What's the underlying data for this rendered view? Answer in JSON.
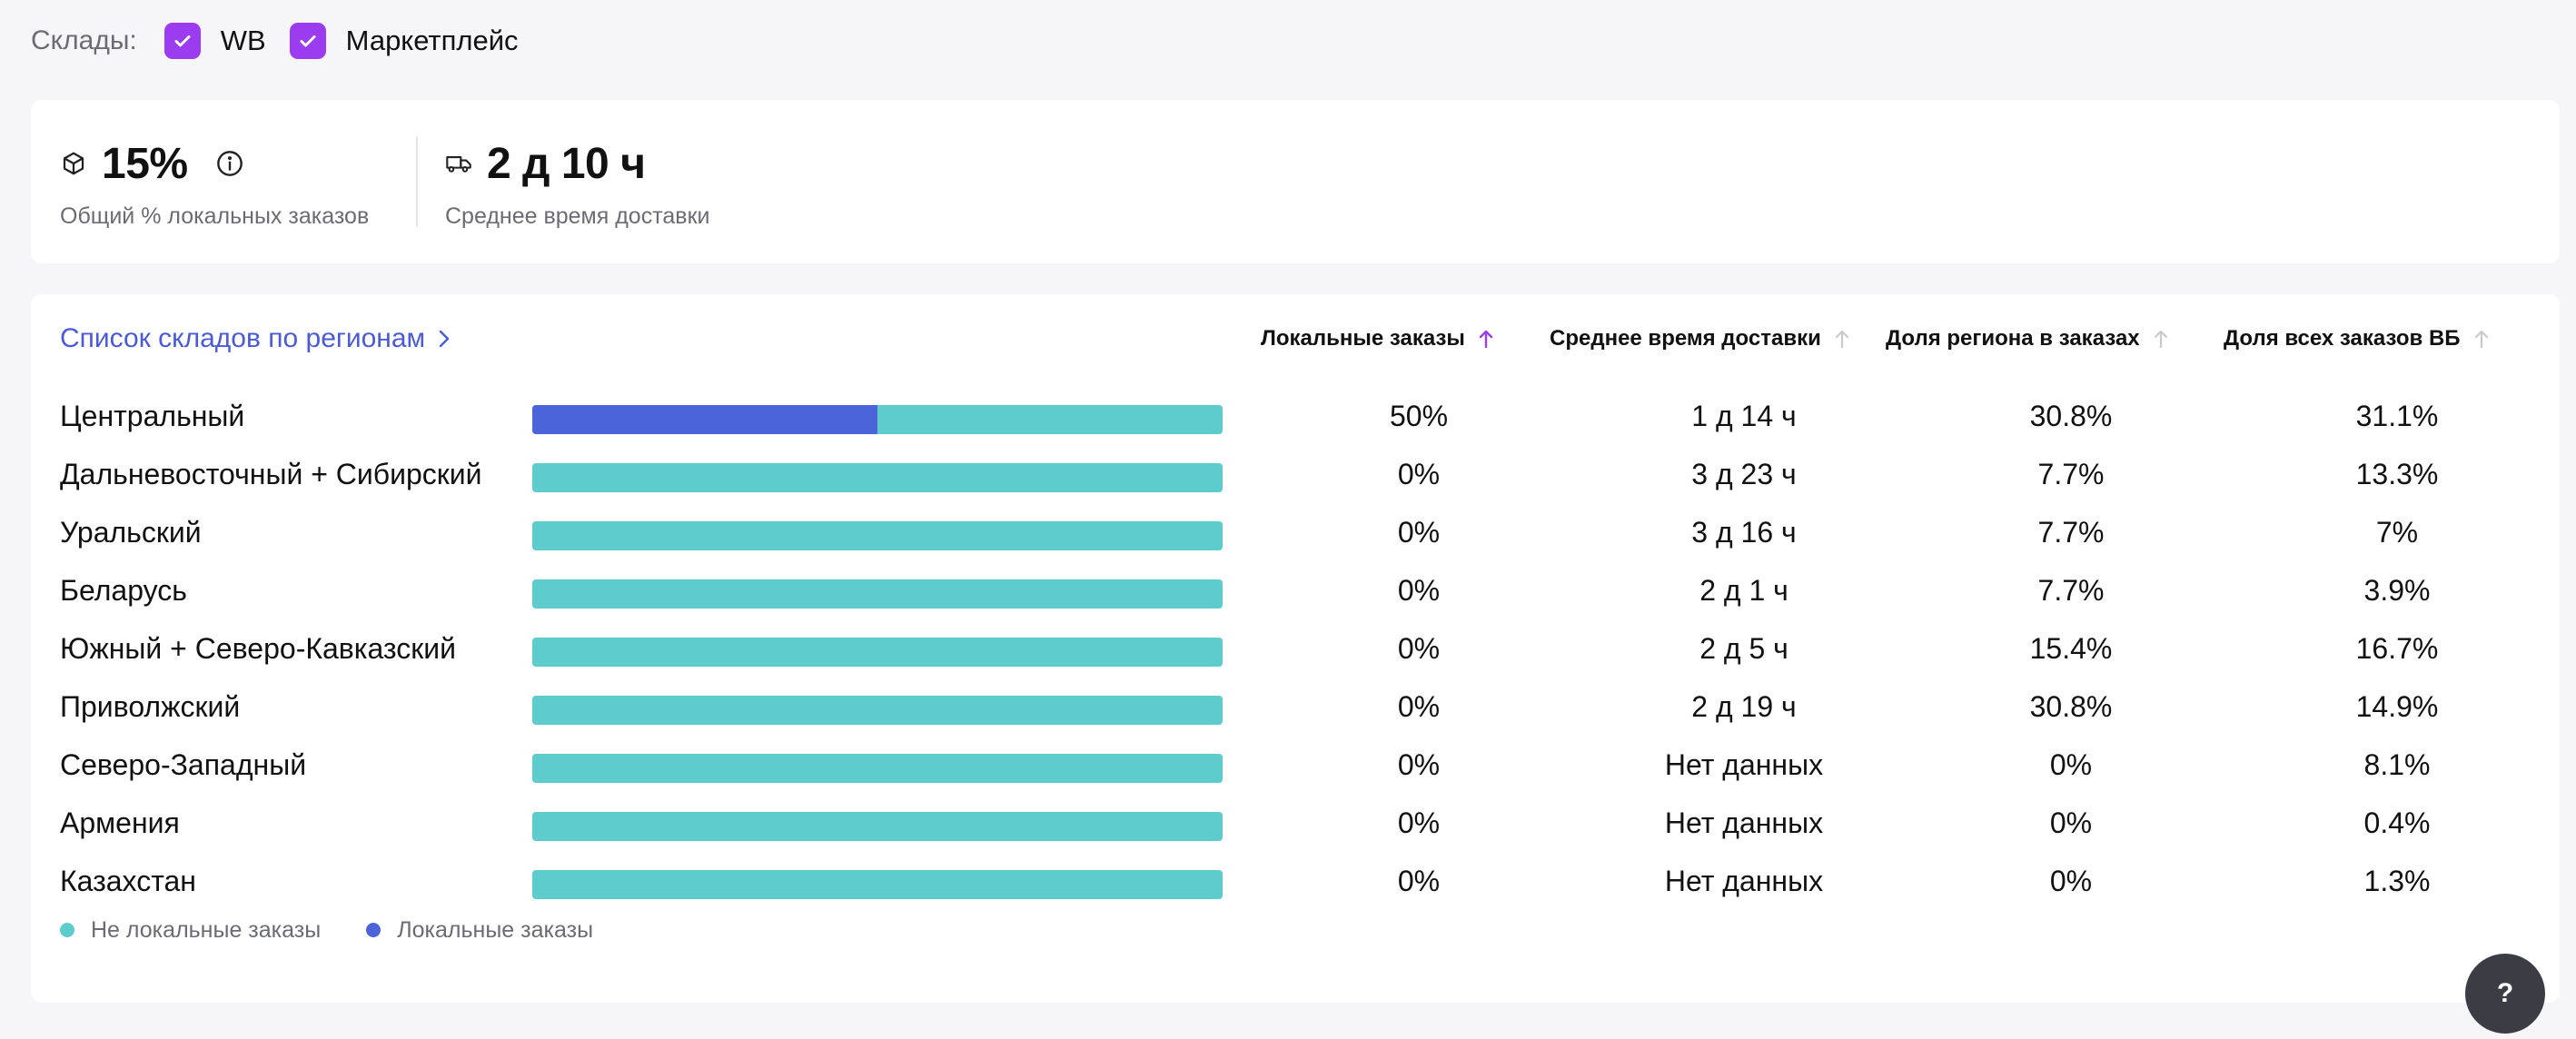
{
  "filters": {
    "label": "Склады:",
    "options": [
      {
        "label": "WB",
        "checked": true
      },
      {
        "label": "Маркетплейс",
        "checked": true
      }
    ],
    "accent_color": "#9b3cf0"
  },
  "stats": {
    "local_share": {
      "value": "15%",
      "caption": "Общий % локальных заказов",
      "icon": "box-icon"
    },
    "delivery_time": {
      "value": "2 д 10 ч",
      "caption": "Среднее время доставки",
      "icon": "truck-icon"
    }
  },
  "table": {
    "title": "Список складов по регионам",
    "columns": [
      {
        "label": "Локальные заказы",
        "sort_active": true
      },
      {
        "label": "Среднее время доставки",
        "sort_active": false
      },
      {
        "label": "Доля региона в заказах",
        "sort_active": false
      },
      {
        "label": "Доля всех заказов ВБ",
        "sort_active": false
      }
    ],
    "rows": [
      {
        "region": "Центральный",
        "local_fraction": 0.5,
        "local": "50%",
        "time": "1 д 14 ч",
        "region_share": "30.8%",
        "wb_share": "31.1%"
      },
      {
        "region": "Дальневосточный + Сибирский",
        "local_fraction": 0,
        "local": "0%",
        "time": "3 д 23 ч",
        "region_share": "7.7%",
        "wb_share": "13.3%"
      },
      {
        "region": "Уральский",
        "local_fraction": 0,
        "local": "0%",
        "time": "3 д 16 ч",
        "region_share": "7.7%",
        "wb_share": "7%"
      },
      {
        "region": "Беларусь",
        "local_fraction": 0,
        "local": "0%",
        "time": "2 д 1 ч",
        "region_share": "7.7%",
        "wb_share": "3.9%"
      },
      {
        "region": "Южный + Северо-Кавказский",
        "local_fraction": 0,
        "local": "0%",
        "time": "2 д 5 ч",
        "region_share": "15.4%",
        "wb_share": "16.7%"
      },
      {
        "region": "Приволжский",
        "local_fraction": 0,
        "local": "0%",
        "time": "2 д 19 ч",
        "region_share": "30.8%",
        "wb_share": "14.9%"
      },
      {
        "region": "Северо-Западный",
        "local_fraction": 0,
        "local": "0%",
        "time": "Нет данных",
        "region_share": "0%",
        "wb_share": "8.1%"
      },
      {
        "region": "Армения",
        "local_fraction": 0,
        "local": "0%",
        "time": "Нет данных",
        "region_share": "0%",
        "wb_share": "0.4%"
      },
      {
        "region": "Казахстан",
        "local_fraction": 0,
        "local": "0%",
        "time": "Нет данных",
        "region_share": "0%",
        "wb_share": "1.3%"
      }
    ],
    "legend": [
      {
        "label": "Не локальные заказы",
        "color": "#5ecbcd"
      },
      {
        "label": "Локальные заказы",
        "color": "#4b64da"
      }
    ]
  },
  "help": {
    "label": "?"
  }
}
